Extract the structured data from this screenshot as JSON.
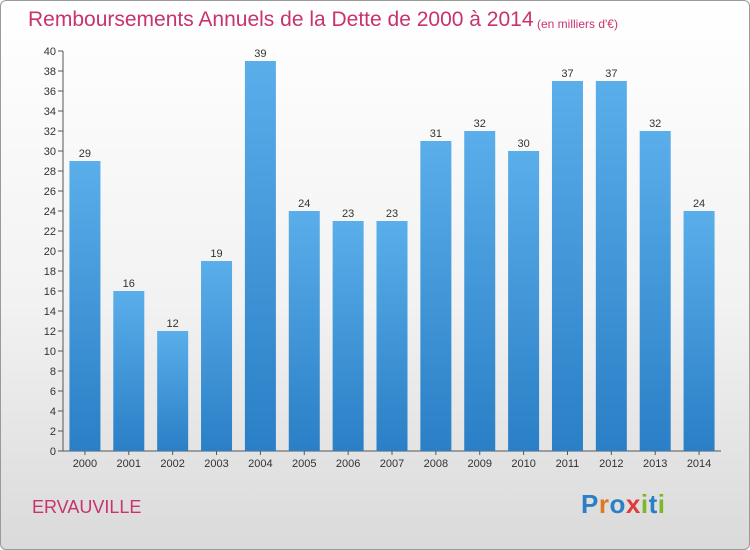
{
  "header": {
    "title": "Remboursements Annuels de la Dette de 2000 à 2014",
    "unit": "(en milliers d'€)"
  },
  "footer": {
    "commune": "ERVAUVILLE",
    "logo_text": "Proxiti"
  },
  "colors": {
    "title": "#c8326e",
    "bar_top": "#5aaeea",
    "bar_bottom": "#2a7fc6",
    "logo_letters": [
      "#2a7fc6",
      "#e07820",
      "#2a7fc6",
      "#e03a3a",
      "#7ab828",
      "#2a7fc6",
      "#7ab828"
    ]
  },
  "chart_data": {
    "type": "bar",
    "categories": [
      "2000",
      "2001",
      "2002",
      "2003",
      "2004",
      "2005",
      "2006",
      "2007",
      "2008",
      "2009",
      "2010",
      "2011",
      "2012",
      "2013",
      "2014"
    ],
    "values": [
      29,
      16,
      12,
      19,
      39,
      24,
      23,
      23,
      31,
      32,
      30,
      37,
      37,
      32,
      24
    ],
    "title": "Remboursements Annuels de la Dette de 2000 à 2014",
    "xlabel": "",
    "ylabel": "",
    "ylim": [
      0,
      40
    ],
    "yticks": [
      0,
      2,
      4,
      6,
      8,
      10,
      12,
      14,
      16,
      18,
      20,
      22,
      24,
      26,
      28,
      30,
      32,
      34,
      36,
      38,
      40
    ],
    "grid": false,
    "data_labels": true
  }
}
